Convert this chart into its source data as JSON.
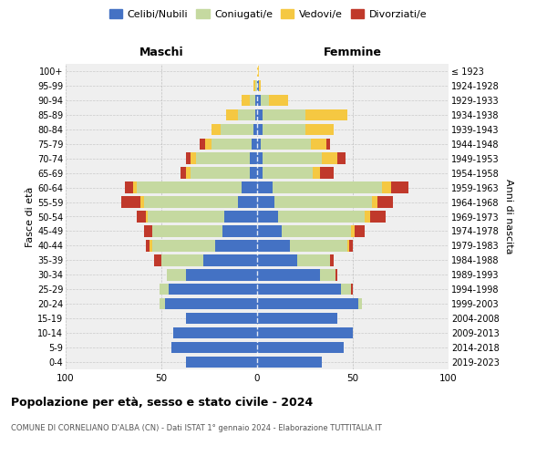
{
  "age_groups": [
    "0-4",
    "5-9",
    "10-14",
    "15-19",
    "20-24",
    "25-29",
    "30-34",
    "35-39",
    "40-44",
    "45-49",
    "50-54",
    "55-59",
    "60-64",
    "65-69",
    "70-74",
    "75-79",
    "80-84",
    "85-89",
    "90-94",
    "95-99",
    "100+"
  ],
  "birth_years": [
    "2019-2023",
    "2014-2018",
    "2009-2013",
    "2004-2008",
    "1999-2003",
    "1994-1998",
    "1989-1993",
    "1984-1988",
    "1979-1983",
    "1974-1978",
    "1969-1973",
    "1964-1968",
    "1959-1963",
    "1954-1958",
    "1949-1953",
    "1944-1948",
    "1939-1943",
    "1934-1938",
    "1929-1933",
    "1924-1928",
    "≤ 1923"
  ],
  "colors": {
    "celibi": "#4472c4",
    "coniugati": "#c5d9a0",
    "vedovi": "#f5c842",
    "divorziati": "#c0392b"
  },
  "maschi": {
    "celibi": [
      37,
      45,
      44,
      37,
      48,
      46,
      37,
      28,
      22,
      18,
      17,
      10,
      8,
      4,
      4,
      3,
      2,
      1,
      1,
      0,
      0
    ],
    "coniugati": [
      0,
      0,
      0,
      0,
      3,
      5,
      10,
      22,
      33,
      37,
      40,
      49,
      55,
      31,
      28,
      21,
      17,
      9,
      3,
      1,
      0
    ],
    "vedovi": [
      0,
      0,
      0,
      0,
      0,
      0,
      0,
      0,
      1,
      0,
      1,
      2,
      2,
      2,
      3,
      3,
      5,
      6,
      4,
      1,
      0
    ],
    "divorziati": [
      0,
      0,
      0,
      0,
      0,
      0,
      0,
      4,
      2,
      4,
      5,
      10,
      4,
      3,
      2,
      3,
      0,
      0,
      0,
      0,
      0
    ]
  },
  "femmine": {
    "celibi": [
      34,
      45,
      50,
      42,
      53,
      44,
      33,
      21,
      17,
      13,
      11,
      9,
      8,
      3,
      3,
      2,
      3,
      3,
      2,
      1,
      0
    ],
    "coniugati": [
      0,
      0,
      0,
      0,
      2,
      5,
      8,
      17,
      30,
      36,
      45,
      51,
      57,
      26,
      31,
      26,
      22,
      22,
      4,
      0,
      0
    ],
    "vedovi": [
      0,
      0,
      0,
      0,
      0,
      0,
      0,
      0,
      1,
      2,
      3,
      3,
      5,
      4,
      8,
      8,
      15,
      22,
      10,
      1,
      1
    ],
    "divorziati": [
      0,
      0,
      0,
      0,
      0,
      1,
      1,
      2,
      2,
      5,
      8,
      8,
      9,
      7,
      4,
      2,
      0,
      0,
      0,
      0,
      0
    ]
  },
  "xlim": 100,
  "title": "Popolazione per età, sesso e stato civile - 2024",
  "subtitle": "COMUNE DI CORNELIANO D'ALBA (CN) - Dati ISTAT 1° gennaio 2024 - Elaborazione TUTTITALIA.IT",
  "ylabel_left": "Fasce di età",
  "ylabel_right": "Anni di nascita",
  "xlabel_left": "Maschi",
  "xlabel_right": "Femmine",
  "bg_color": "#ffffff",
  "plot_bg": "#efefef",
  "grid_color": "#cccccc"
}
